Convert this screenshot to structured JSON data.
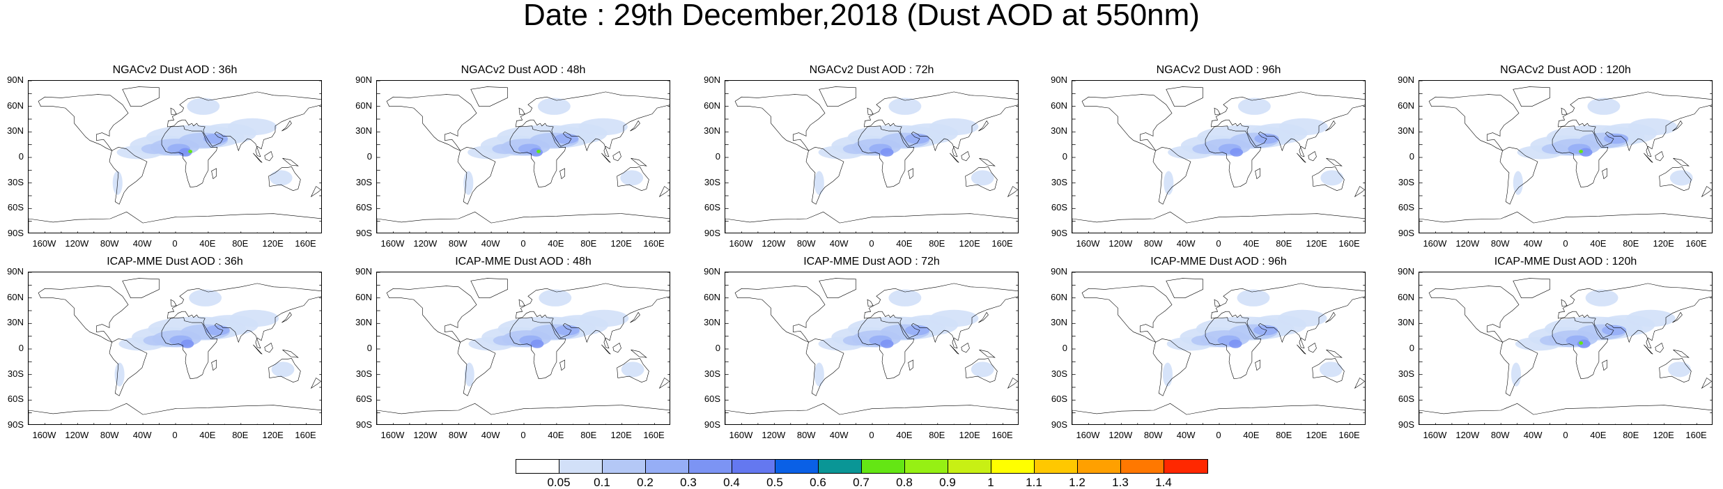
{
  "title": "Date : 29th December,2018 (Dust AOD at 550nm)",
  "panels": [
    {
      "title": "NGACv2 Dust AOD : 36h",
      "model": "NGACv2",
      "lead_hours": 36
    },
    {
      "title": "NGACv2 Dust AOD : 48h",
      "model": "NGACv2",
      "lead_hours": 48
    },
    {
      "title": "NGACv2 Dust AOD : 72h",
      "model": "NGACv2",
      "lead_hours": 72
    },
    {
      "title": "NGACv2 Dust AOD : 96h",
      "model": "NGACv2",
      "lead_hours": 96
    },
    {
      "title": "NGACv2 Dust AOD : 120h",
      "model": "NGACv2",
      "lead_hours": 120
    },
    {
      "title": "ICAP-MME Dust AOD : 36h",
      "model": "ICAP-MME",
      "lead_hours": 36
    },
    {
      "title": "ICAP-MME Dust AOD : 48h",
      "model": "ICAP-MME",
      "lead_hours": 48
    },
    {
      "title": "ICAP-MME Dust AOD : 72h",
      "model": "ICAP-MME",
      "lead_hours": 72
    },
    {
      "title": "ICAP-MME Dust AOD : 96h",
      "model": "ICAP-MME",
      "lead_hours": 96
    },
    {
      "title": "ICAP-MME Dust AOD : 120h",
      "model": "ICAP-MME",
      "lead_hours": 120
    }
  ],
  "axes": {
    "lat_ticks": [
      "90N",
      "60N",
      "30N",
      "0",
      "30S",
      "60S",
      "90S"
    ],
    "lon_ticks": [
      "160W",
      "120W",
      "80W",
      "40W",
      "0",
      "40E",
      "80E",
      "120E",
      "160E"
    ]
  },
  "colorbar": {
    "colors": [
      "#ffffff",
      "#d2e0f8",
      "#b4c8f6",
      "#96aef6",
      "#7c94f4",
      "#6478f0",
      "#0a60e6",
      "#0a9696",
      "#64e614",
      "#96f014",
      "#c8f014",
      "#ffff00",
      "#ffc800",
      "#ffa000",
      "#ff7800",
      "#ff2800"
    ],
    "labels": [
      "0.05",
      "0.1",
      "0.2",
      "0.3",
      "0.4",
      "0.5",
      "0.6",
      "0.7",
      "0.8",
      "0.9",
      "1",
      "1.1",
      "1.2",
      "1.3",
      "1.4"
    ]
  }
}
